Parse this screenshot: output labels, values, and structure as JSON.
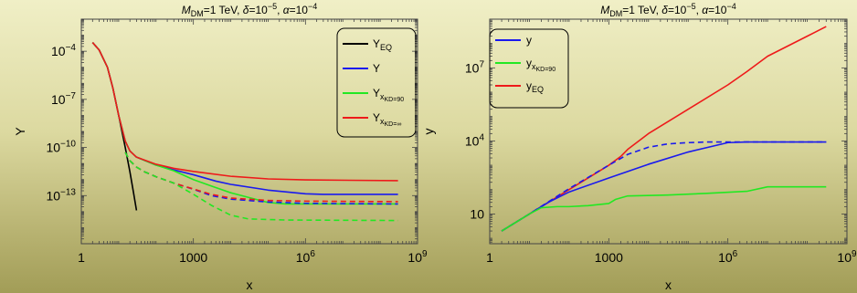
{
  "chart_data": [
    {
      "type": "line",
      "title": "M_DM=1 TeV, δ=10^-5, α=10^-4",
      "title_parts": {
        "m_sym": "M",
        "m_sub": "DM",
        "m_val": "=1 TeV, ",
        "delta_sym": "δ",
        "delta_val": "=10",
        "delta_exp": "−5",
        "sep": ", ",
        "alpha_sym": "α",
        "alpha_val": "=10",
        "alpha_exp": "−4"
      },
      "xlabel": "x",
      "ylabel": "Y",
      "xscale": "log",
      "yscale": "log",
      "xlim": [
        1,
        1000000000
      ],
      "ylim": [
        1e-16,
        0.01
      ],
      "xticks": [
        {
          "v": 1,
          "label": "1"
        },
        {
          "v": 1000,
          "label": "1000"
        },
        {
          "v": 1000000,
          "base": "10",
          "exp": "6"
        },
        {
          "v": 1000000000,
          "base": "10",
          "exp": "9"
        }
      ],
      "yticks": [
        {
          "v": 0.0001,
          "base": "10",
          "exp": "−4"
        },
        {
          "v": 1e-07,
          "base": "10",
          "exp": "−7"
        },
        {
          "v": 1e-10,
          "base": "10",
          "exp": "−10"
        },
        {
          "v": 1e-13,
          "base": "10",
          "exp": "−13"
        }
      ],
      "legend": {
        "position": "top-right",
        "entries": [
          {
            "main": "Y",
            "sub": "EQ",
            "subsub": "",
            "color": "#000000"
          },
          {
            "main": "Y",
            "sub": "",
            "subsub": "",
            "color": "#1a1aee"
          },
          {
            "main": "Y",
            "sub": "x",
            "subsub": "KD=90",
            "color": "#22e822"
          },
          {
            "main": "Y",
            "sub": "x",
            "subsub": "KD=∞",
            "color": "#ee1a1a"
          }
        ]
      },
      "series": [
        {
          "color": "#000000",
          "dash": false,
          "points": [
            [
              2,
              0.00035
            ],
            [
              3,
              0.00012
            ],
            [
              5,
              1e-05
            ],
            [
              7,
              5e-07
            ],
            [
              10,
              1e-08
            ],
            [
              15,
              1e-10
            ],
            [
              20,
              3e-12
            ],
            [
              25,
              1.5e-13
            ],
            [
              30,
              1.2e-14
            ]
          ]
        },
        {
          "color": "#1a1aee",
          "dash": false,
          "points": [
            [
              2,
              0.00035
            ],
            [
              3,
              0.00012
            ],
            [
              5,
              1e-05
            ],
            [
              7,
              5e-07
            ],
            [
              10,
              1e-08
            ],
            [
              15,
              2.5e-10
            ],
            [
              20,
              6e-11
            ],
            [
              30,
              2.5e-11
            ],
            [
              100,
              8e-12
            ],
            [
              300,
              4e-12
            ],
            [
              1000,
              2e-12
            ],
            [
              4000,
              8e-13
            ],
            [
              10000,
              5e-13
            ],
            [
              100000,
              2.2e-13
            ],
            [
              1000000,
              1.3e-13
            ],
            [
              3000000,
              1.2e-13
            ],
            [
              300000000,
              1.2e-13
            ]
          ]
        },
        {
          "color": "#22e822",
          "dash": false,
          "points": [
            [
              2,
              0.00035
            ],
            [
              3,
              0.00012
            ],
            [
              5,
              1e-05
            ],
            [
              7,
              5e-07
            ],
            [
              10,
              1e-08
            ],
            [
              15,
              2.5e-10
            ],
            [
              20,
              6e-11
            ],
            [
              30,
              2.5e-11
            ],
            [
              100,
              8e-12
            ],
            [
              300,
              3.5e-12
            ],
            [
              1000,
              1e-12
            ],
            [
              3000,
              4e-13
            ],
            [
              10000,
              1.5e-13
            ],
            [
              100000,
              3.7e-14
            ],
            [
              300000,
              3e-14
            ],
            [
              300000000,
              3e-14
            ]
          ]
        },
        {
          "color": "#ee1a1a",
          "dash": false,
          "points": [
            [
              2,
              0.00035
            ],
            [
              3,
              0.00012
            ],
            [
              5,
              1e-05
            ],
            [
              7,
              5e-07
            ],
            [
              10,
              1e-08
            ],
            [
              15,
              2.5e-10
            ],
            [
              20,
              6e-11
            ],
            [
              30,
              2.5e-11
            ],
            [
              100,
              9e-12
            ],
            [
              300,
              5e-12
            ],
            [
              1000,
              3.2e-12
            ],
            [
              10000,
              1.6e-12
            ],
            [
              100000,
              1.1e-12
            ],
            [
              1000000,
              9.5e-13
            ],
            [
              300000000,
              8.5e-13
            ]
          ]
        },
        {
          "color": "#1a1aee",
          "dash": true,
          "points": [
            [
              15,
              5e-11
            ],
            [
              20,
              1.5e-11
            ],
            [
              30,
              6e-12
            ],
            [
              50,
              3e-12
            ],
            [
              100,
              1.5e-12
            ],
            [
              300,
              6e-13
            ],
            [
              1000,
              2.5e-13
            ],
            [
              3000,
              1e-13
            ],
            [
              10000,
              6e-14
            ],
            [
              100000,
              4e-14
            ],
            [
              1000000,
              3.3e-14
            ],
            [
              300000000,
              3e-14
            ]
          ]
        },
        {
          "color": "#ee1a1a",
          "dash": true,
          "points": [
            [
              15,
              5e-11
            ],
            [
              20,
              1.5e-11
            ],
            [
              30,
              6e-12
            ],
            [
              50,
              3e-12
            ],
            [
              100,
              1.5e-12
            ],
            [
              300,
              6e-13
            ],
            [
              1000,
              2.6e-13
            ],
            [
              3000,
              1.2e-13
            ],
            [
              10000,
              7e-14
            ],
            [
              100000,
              5e-14
            ],
            [
              1000000,
              4.5e-14
            ],
            [
              300000000,
              4.2e-14
            ]
          ]
        },
        {
          "color": "#22e822",
          "dash": true,
          "points": [
            [
              15,
              5e-11
            ],
            [
              20,
              1.5e-11
            ],
            [
              30,
              6e-12
            ],
            [
              50,
              3e-12
            ],
            [
              100,
              1.5e-12
            ],
            [
              300,
              6e-13
            ],
            [
              1000,
              1.2e-13
            ],
            [
              3000,
              2.5e-14
            ],
            [
              10000,
              6e-15
            ],
            [
              30000,
              3.5e-15
            ],
            [
              300000,
              3e-15
            ],
            [
              300000000,
              2.8e-15
            ]
          ]
        }
      ]
    },
    {
      "type": "line",
      "title": "M_DM=1 TeV, δ=10^-5, α=10^-4",
      "title_parts": {
        "m_sym": "M",
        "m_sub": "DM",
        "m_val": "=1 TeV, ",
        "delta_sym": "δ",
        "delta_val": "=10",
        "delta_exp": "−5",
        "sep": ", ",
        "alpha_sym": "α",
        "alpha_val": "=10",
        "alpha_exp": "−4"
      },
      "xlabel": "x",
      "ylabel": "y",
      "xscale": "log",
      "yscale": "log",
      "xlim": [
        1,
        1000000000
      ],
      "ylim": [
        0.6,
        1000000000
      ],
      "xticks": [
        {
          "v": 1,
          "label": "1"
        },
        {
          "v": 1000,
          "label": "1000"
        },
        {
          "v": 1000000,
          "base": "10",
          "exp": "6"
        },
        {
          "v": 1000000000,
          "base": "10",
          "exp": "9"
        }
      ],
      "yticks": [
        {
          "v": 10,
          "label": "10"
        },
        {
          "v": 10000,
          "base": "10",
          "exp": "4"
        },
        {
          "v": 10000000,
          "base": "10",
          "exp": "7"
        }
      ],
      "legend": {
        "position": "top-left",
        "entries": [
          {
            "main": "y",
            "sub": "",
            "subsub": "",
            "color": "#1a1aee"
          },
          {
            "main": "y",
            "sub": "x",
            "subsub": "KD=90",
            "color": "#22e822"
          },
          {
            "main": "y",
            "sub": "EQ",
            "subsub": "",
            "color": "#ee1a1a"
          }
        ]
      },
      "series": [
        {
          "color": "#ee1a1a",
          "dash": false,
          "points": [
            [
              2,
              2
            ],
            [
              10,
              10
            ],
            [
              100,
              100
            ],
            [
              1000,
              1000
            ],
            [
              2000,
              2300
            ],
            [
              3000,
              4500
            ],
            [
              10000,
              20000
            ],
            [
              100000,
              200000
            ],
            [
              1000000,
              2000000
            ],
            [
              3000000,
              7000000
            ],
            [
              10000000,
              30000000
            ],
            [
              100000000,
              200000000
            ],
            [
              300000000,
              500000000
            ]
          ]
        },
        {
          "color": "#1a1aee",
          "dash": true,
          "points": [
            [
              2,
              2
            ],
            [
              10,
              10
            ],
            [
              100,
              110
            ],
            [
              1000,
              1000
            ],
            [
              3000,
              2800
            ],
            [
              10000,
              5500
            ],
            [
              30000,
              7500
            ],
            [
              100000,
              8500
            ],
            [
              300000,
              9000
            ],
            [
              1000000,
              9000
            ],
            [
              300000000,
              9000
            ]
          ]
        },
        {
          "color": "#1a1aee",
          "dash": false,
          "points": [
            [
              2,
              2
            ],
            [
              10,
              10
            ],
            [
              30,
              30
            ],
            [
              100,
              80
            ],
            [
              1000,
              300
            ],
            [
              10000,
              1100
            ],
            [
              100000,
              3500
            ],
            [
              1000000,
              8500
            ],
            [
              3000000,
              9000
            ],
            [
              300000000,
              9000
            ]
          ]
        },
        {
          "color": "#22e822",
          "dash": false,
          "points": [
            [
              2,
              2
            ],
            [
              10,
              10
            ],
            [
              20,
              18
            ],
            [
              50,
              20
            ],
            [
              100,
              20
            ],
            [
              300,
              22
            ],
            [
              1000,
              27
            ],
            [
              1500,
              40
            ],
            [
              3000,
              55
            ],
            [
              30000,
              60
            ],
            [
              300000,
              70
            ],
            [
              3000000,
              85
            ],
            [
              10000000,
              130
            ],
            [
              300000000,
              130
            ]
          ]
        }
      ]
    }
  ]
}
